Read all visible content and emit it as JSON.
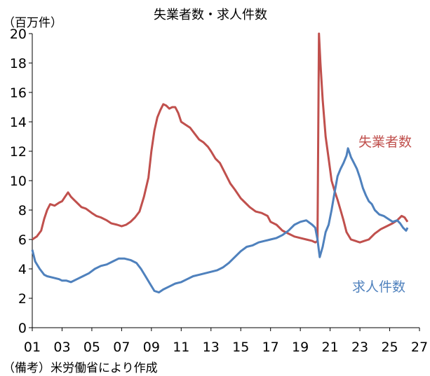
{
  "chart_data": {
    "type": "line",
    "title": "失業者数・求人件数",
    "unit_label": "（百万件）",
    "note": "（備考）米労働省により作成",
    "x_range": [
      2001,
      2027
    ],
    "x_ticks": [
      2001,
      2003,
      2005,
      2007,
      2009,
      2011,
      2013,
      2015,
      2017,
      2019,
      2021,
      2023,
      2025,
      2027
    ],
    "x_tick_labels": [
      "01",
      "03",
      "05",
      "07",
      "09",
      "11",
      "13",
      "15",
      "17",
      "19",
      "21",
      "23",
      "25",
      "27"
    ],
    "ylim": [
      0,
      20
    ],
    "y_ticks": [
      0,
      2,
      4,
      6,
      8,
      10,
      12,
      14,
      16,
      18,
      20
    ],
    "grid": false,
    "series": [
      {
        "name": "失業者数",
        "color": "#c0504d",
        "points": [
          [
            2001.0,
            6.0
          ],
          [
            2001.3,
            6.2
          ],
          [
            2001.6,
            6.6
          ],
          [
            2001.8,
            7.4
          ],
          [
            2002.0,
            8.0
          ],
          [
            2002.2,
            8.4
          ],
          [
            2002.5,
            8.3
          ],
          [
            2002.8,
            8.5
          ],
          [
            2003.0,
            8.6
          ],
          [
            2003.2,
            8.9
          ],
          [
            2003.4,
            9.2
          ],
          [
            2003.6,
            8.9
          ],
          [
            2003.8,
            8.7
          ],
          [
            2004.0,
            8.5
          ],
          [
            2004.3,
            8.2
          ],
          [
            2004.6,
            8.1
          ],
          [
            2005.0,
            7.8
          ],
          [
            2005.3,
            7.6
          ],
          [
            2005.6,
            7.5
          ],
          [
            2006.0,
            7.3
          ],
          [
            2006.3,
            7.1
          ],
          [
            2006.7,
            7.0
          ],
          [
            2007.0,
            6.9
          ],
          [
            2007.3,
            7.0
          ],
          [
            2007.6,
            7.2
          ],
          [
            2007.9,
            7.5
          ],
          [
            2008.2,
            7.9
          ],
          [
            2008.5,
            8.9
          ],
          [
            2008.8,
            10.2
          ],
          [
            2009.0,
            12.0
          ],
          [
            2009.2,
            13.4
          ],
          [
            2009.4,
            14.3
          ],
          [
            2009.6,
            14.8
          ],
          [
            2009.8,
            15.2
          ],
          [
            2010.0,
            15.1
          ],
          [
            2010.2,
            14.9
          ],
          [
            2010.4,
            15.0
          ],
          [
            2010.6,
            15.0
          ],
          [
            2010.8,
            14.6
          ],
          [
            2011.0,
            14.0
          ],
          [
            2011.3,
            13.8
          ],
          [
            2011.6,
            13.6
          ],
          [
            2011.9,
            13.2
          ],
          [
            2012.2,
            12.8
          ],
          [
            2012.5,
            12.6
          ],
          [
            2012.8,
            12.3
          ],
          [
            2013.0,
            12.0
          ],
          [
            2013.3,
            11.5
          ],
          [
            2013.6,
            11.2
          ],
          [
            2014.0,
            10.4
          ],
          [
            2014.3,
            9.8
          ],
          [
            2014.6,
            9.4
          ],
          [
            2015.0,
            8.8
          ],
          [
            2015.3,
            8.5
          ],
          [
            2015.6,
            8.2
          ],
          [
            2016.0,
            7.9
          ],
          [
            2016.4,
            7.8
          ],
          [
            2016.8,
            7.6
          ],
          [
            2017.0,
            7.2
          ],
          [
            2017.4,
            7.0
          ],
          [
            2017.8,
            6.6
          ],
          [
            2018.2,
            6.4
          ],
          [
            2018.6,
            6.2
          ],
          [
            2019.0,
            6.1
          ],
          [
            2019.4,
            6.0
          ],
          [
            2019.8,
            5.9
          ],
          [
            2020.0,
            5.8
          ],
          [
            2020.15,
            5.9
          ],
          [
            2020.25,
            20.0
          ],
          [
            2020.35,
            18.0
          ],
          [
            2020.5,
            15.5
          ],
          [
            2020.7,
            13.0
          ],
          [
            2020.9,
            11.5
          ],
          [
            2021.1,
            10.0
          ],
          [
            2021.3,
            9.3
          ],
          [
            2021.5,
            8.7
          ],
          [
            2021.7,
            8.0
          ],
          [
            2021.9,
            7.3
          ],
          [
            2022.1,
            6.5
          ],
          [
            2022.4,
            6.0
          ],
          [
            2022.7,
            5.9
          ],
          [
            2023.0,
            5.8
          ],
          [
            2023.3,
            5.9
          ],
          [
            2023.6,
            6.0
          ],
          [
            2024.0,
            6.4
          ],
          [
            2024.4,
            6.7
          ],
          [
            2024.8,
            6.9
          ],
          [
            2025.2,
            7.1
          ],
          [
            2025.5,
            7.3
          ],
          [
            2025.8,
            7.6
          ],
          [
            2026.0,
            7.5
          ],
          [
            2026.2,
            7.2
          ]
        ]
      },
      {
        "name": "求人件数",
        "color": "#4f81bd",
        "points": [
          [
            2001.0,
            5.3
          ],
          [
            2001.2,
            4.5
          ],
          [
            2001.5,
            4.0
          ],
          [
            2001.8,
            3.6
          ],
          [
            2002.0,
            3.5
          ],
          [
            2002.4,
            3.4
          ],
          [
            2002.8,
            3.3
          ],
          [
            2003.0,
            3.2
          ],
          [
            2003.3,
            3.2
          ],
          [
            2003.6,
            3.1
          ],
          [
            2004.0,
            3.3
          ],
          [
            2004.4,
            3.5
          ],
          [
            2004.8,
            3.7
          ],
          [
            2005.2,
            4.0
          ],
          [
            2005.6,
            4.2
          ],
          [
            2006.0,
            4.3
          ],
          [
            2006.4,
            4.5
          ],
          [
            2006.8,
            4.7
          ],
          [
            2007.2,
            4.7
          ],
          [
            2007.6,
            4.6
          ],
          [
            2008.0,
            4.4
          ],
          [
            2008.3,
            4.0
          ],
          [
            2008.6,
            3.5
          ],
          [
            2008.9,
            3.0
          ],
          [
            2009.2,
            2.5
          ],
          [
            2009.5,
            2.4
          ],
          [
            2009.8,
            2.6
          ],
          [
            2010.2,
            2.8
          ],
          [
            2010.6,
            3.0
          ],
          [
            2011.0,
            3.1
          ],
          [
            2011.4,
            3.3
          ],
          [
            2011.8,
            3.5
          ],
          [
            2012.2,
            3.6
          ],
          [
            2012.6,
            3.7
          ],
          [
            2013.0,
            3.8
          ],
          [
            2013.4,
            3.9
          ],
          [
            2013.8,
            4.1
          ],
          [
            2014.2,
            4.4
          ],
          [
            2014.6,
            4.8
          ],
          [
            2015.0,
            5.2
          ],
          [
            2015.4,
            5.5
          ],
          [
            2015.8,
            5.6
          ],
          [
            2016.2,
            5.8
          ],
          [
            2016.6,
            5.9
          ],
          [
            2017.0,
            6.0
          ],
          [
            2017.4,
            6.1
          ],
          [
            2017.8,
            6.3
          ],
          [
            2018.2,
            6.6
          ],
          [
            2018.6,
            7.0
          ],
          [
            2019.0,
            7.2
          ],
          [
            2019.4,
            7.3
          ],
          [
            2019.8,
            7.0
          ],
          [
            2020.0,
            6.8
          ],
          [
            2020.15,
            6.0
          ],
          [
            2020.3,
            4.8
          ],
          [
            2020.5,
            5.5
          ],
          [
            2020.7,
            6.5
          ],
          [
            2020.9,
            7.0
          ],
          [
            2021.1,
            8.0
          ],
          [
            2021.3,
            9.2
          ],
          [
            2021.5,
            10.3
          ],
          [
            2021.7,
            10.8
          ],
          [
            2021.9,
            11.2
          ],
          [
            2022.1,
            11.7
          ],
          [
            2022.2,
            12.2
          ],
          [
            2022.4,
            11.6
          ],
          [
            2022.6,
            11.2
          ],
          [
            2022.8,
            10.8
          ],
          [
            2023.0,
            10.2
          ],
          [
            2023.2,
            9.5
          ],
          [
            2023.4,
            9.0
          ],
          [
            2023.6,
            8.6
          ],
          [
            2023.8,
            8.4
          ],
          [
            2024.0,
            8.0
          ],
          [
            2024.3,
            7.7
          ],
          [
            2024.6,
            7.6
          ],
          [
            2024.9,
            7.4
          ],
          [
            2025.2,
            7.2
          ],
          [
            2025.5,
            7.3
          ],
          [
            2025.7,
            7.1
          ],
          [
            2025.9,
            6.8
          ],
          [
            2026.1,
            6.6
          ],
          [
            2026.2,
            6.8
          ]
        ]
      }
    ]
  }
}
